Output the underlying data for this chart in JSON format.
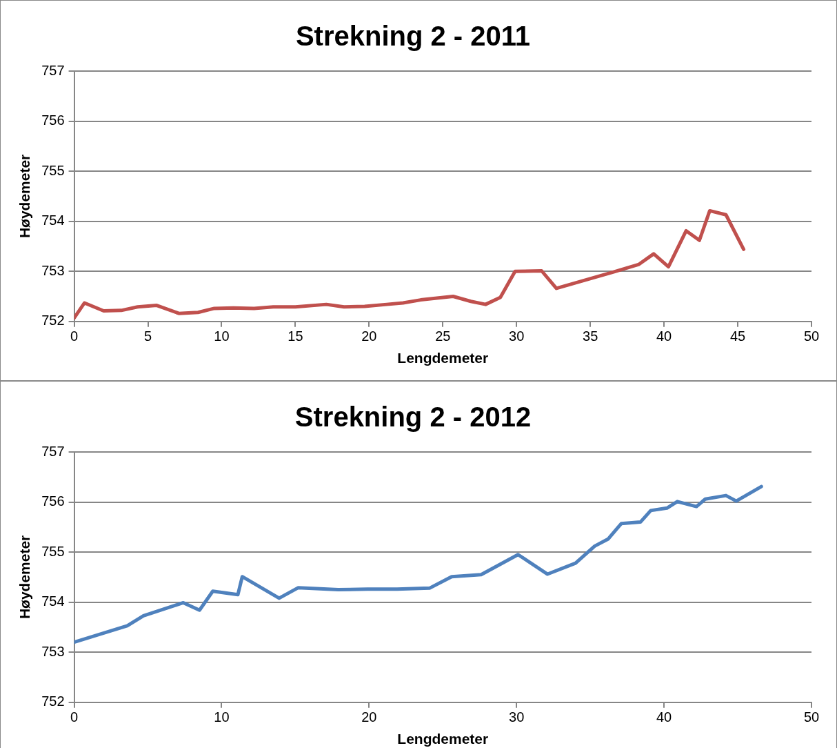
{
  "chart_data": [
    {
      "type": "line",
      "title": "Strekning 2 - 2011",
      "xlabel": "Lengdemeter",
      "ylabel": "Høydemeter",
      "series": [
        {
          "color": "#c0504d",
          "x": [
            0,
            0.7,
            2.0,
            3.2,
            4.3,
            5.6,
            7.1,
            8.4,
            9.5,
            10.8,
            12.2,
            13.5,
            15.0,
            17.1,
            18.3,
            19.7,
            21.2,
            22.3,
            23.5,
            25.7,
            26.9,
            27.9,
            28.9,
            29.9,
            31.7,
            32.7,
            36.5,
            38.3,
            39.3,
            40.3,
            41.5,
            42.4,
            43.1,
            44.2,
            45.4
          ],
          "values": [
            752.07,
            752.37,
            752.21,
            752.22,
            752.29,
            752.32,
            752.16,
            752.18,
            752.26,
            752.27,
            752.26,
            752.29,
            752.29,
            752.34,
            752.29,
            752.3,
            752.34,
            752.37,
            752.43,
            752.5,
            752.4,
            752.34,
            752.48,
            753.0,
            753.01,
            752.66,
            752.98,
            753.14,
            753.35,
            753.09,
            753.81,
            753.62,
            754.21,
            754.13,
            753.44
          ]
        }
      ],
      "xlim": [
        0,
        50
      ],
      "xticks": [
        0,
        5,
        10,
        15,
        20,
        25,
        30,
        35,
        40,
        45,
        50
      ],
      "ylim": [
        752,
        757
      ],
      "yticks": [
        752,
        753,
        754,
        755,
        756,
        757
      ],
      "grid": "y",
      "legend": false,
      "marker": "none",
      "line_style": "solid"
    },
    {
      "type": "line",
      "title": "Strekning 2 - 2012",
      "xlabel": "Lengdemeter",
      "ylabel": "Høydemeter",
      "series": [
        {
          "color": "#4f81bd",
          "x": [
            0,
            3.6,
            4.7,
            7.4,
            8.5,
            9.4,
            11.1,
            11.4,
            13.9,
            15.2,
            17.9,
            19.9,
            21.9,
            24.1,
            25.6,
            27.6,
            30.1,
            32.1,
            34.0,
            35.3,
            36.2,
            37.1,
            38.4,
            39.1,
            40.2,
            40.9,
            42.2,
            42.8,
            44.2,
            44.9,
            46.6
          ],
          "values": [
            753.2,
            753.53,
            753.73,
            753.99,
            753.84,
            754.22,
            754.15,
            754.51,
            754.08,
            754.29,
            754.25,
            754.26,
            754.26,
            754.28,
            754.51,
            754.55,
            754.95,
            754.56,
            754.78,
            755.12,
            755.26,
            755.57,
            755.6,
            755.83,
            755.88,
            756.01,
            755.91,
            756.06,
            756.13,
            756.02,
            756.31
          ]
        }
      ],
      "xlim": [
        0,
        50
      ],
      "xticks": [
        0,
        10,
        20,
        30,
        40,
        50
      ],
      "ylim": [
        752,
        757
      ],
      "yticks": [
        752,
        753,
        754,
        755,
        756,
        757
      ],
      "grid": "y",
      "legend": false,
      "marker": "none",
      "line_style": "solid"
    }
  ]
}
